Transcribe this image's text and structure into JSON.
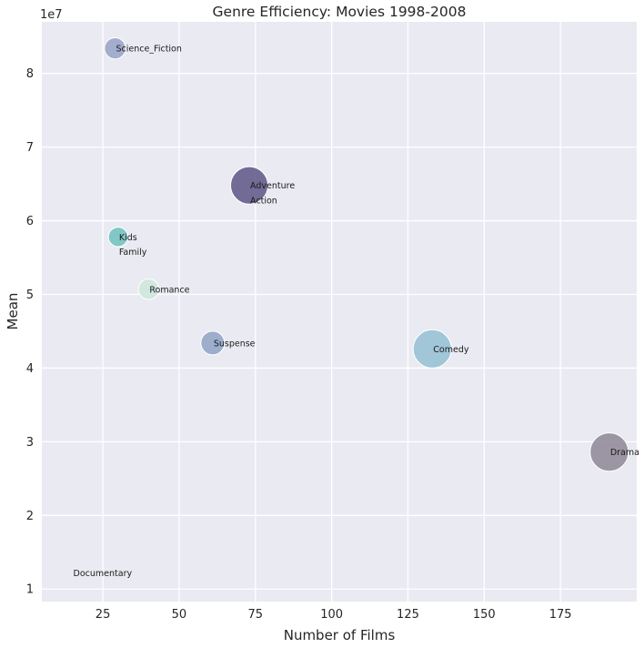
{
  "chart_data": {
    "type": "scatter",
    "title": "Genre Efficiency: Movies 1998-2008",
    "xlabel": "Number of Films",
    "ylabel": "Mean",
    "y_multiplier_label": "1e7",
    "xlim": [
      5,
      200
    ],
    "ylim": [
      0.83,
      8.7
    ],
    "x_ticks": [
      25,
      50,
      75,
      100,
      125,
      150,
      175
    ],
    "y_ticks": [
      1,
      2,
      3,
      4,
      5,
      6,
      7,
      8
    ],
    "grid": true,
    "points": [
      {
        "label": "Science_Fiction",
        "x": 29,
        "y": 8.34,
        "size": 320,
        "color": "#97a3c8"
      },
      {
        "label": "Adventure",
        "x": 73,
        "y": 6.48,
        "size": 1000,
        "color": "#5d5586"
      },
      {
        "label": "Action",
        "x": 73,
        "y": 6.28,
        "size": 0,
        "color": "#5d5586"
      },
      {
        "label": "Kids",
        "x": 30,
        "y": 5.78,
        "size": 270,
        "color": "#6fc1be"
      },
      {
        "label": "Family",
        "x": 30,
        "y": 5.58,
        "size": 0,
        "color": "#6fc1be"
      },
      {
        "label": "Romance",
        "x": 40,
        "y": 5.07,
        "size": 300,
        "color": "#cde6dc"
      },
      {
        "label": "Suspense",
        "x": 61,
        "y": 4.34,
        "size": 400,
        "color": "#8fa3c5"
      },
      {
        "label": "Comedy",
        "x": 133,
        "y": 4.26,
        "size": 1050,
        "color": "#93bfd3"
      },
      {
        "label": "Drama",
        "x": 191,
        "y": 2.86,
        "size": 1050,
        "color": "#8e8797"
      },
      {
        "label": "Documentary",
        "x": 15,
        "y": 1.22,
        "size": 0,
        "color": "#cccccc"
      }
    ]
  }
}
